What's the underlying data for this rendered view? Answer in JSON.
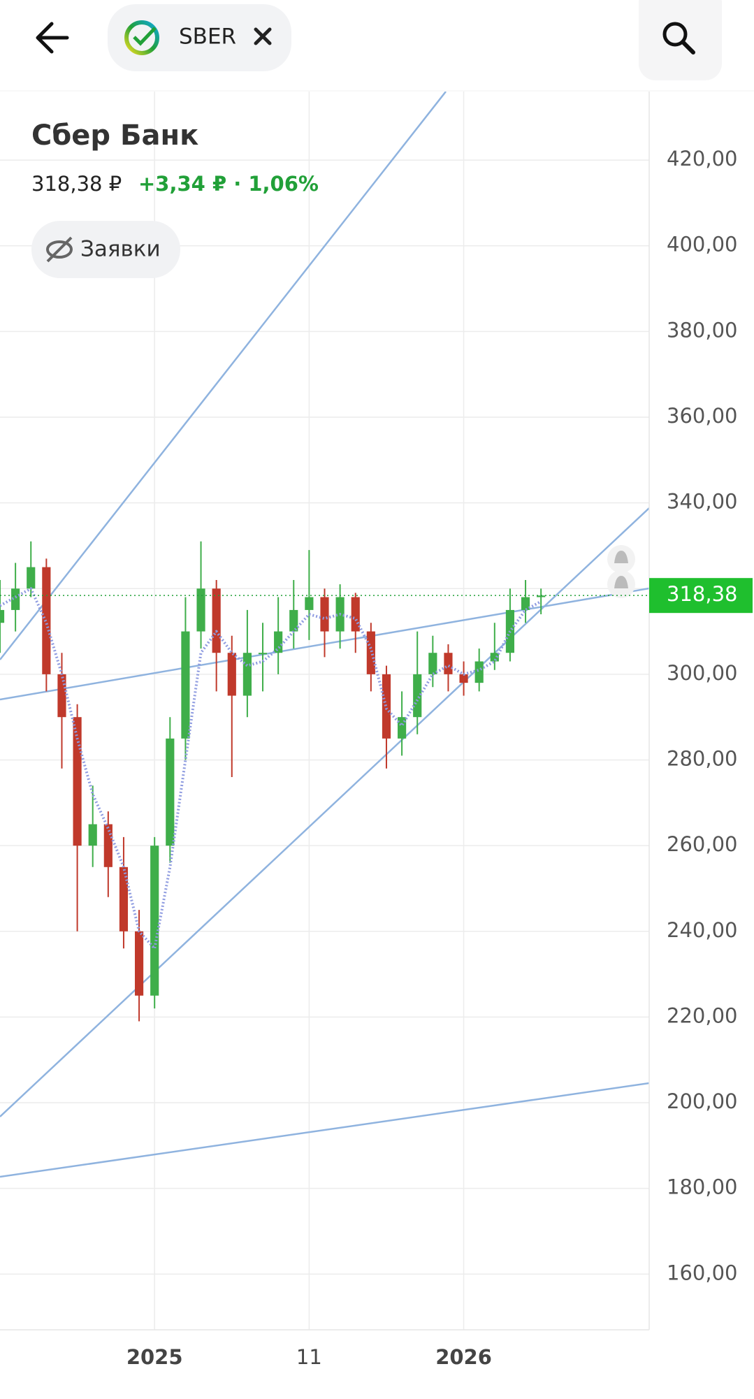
{
  "header": {
    "ticker": "SBER"
  },
  "chart_data": {
    "type": "candlestick",
    "title": "Сбер Банк",
    "price": "318,38 ₽",
    "change": "+3,34 ₽ · 1,06%",
    "orders_button": "Заявки",
    "x": [
      0,
      1,
      2,
      3,
      4,
      5,
      6,
      7,
      8,
      9,
      10,
      11,
      12,
      13,
      14,
      15,
      16,
      17,
      18,
      19,
      20,
      21,
      22,
      23,
      24,
      25,
      26,
      27,
      28,
      29,
      30,
      31,
      32,
      33,
      34,
      35
    ],
    "open": [
      312,
      315,
      320,
      325,
      300,
      290,
      260,
      265,
      255,
      240,
      225,
      260,
      285,
      310,
      320,
      305,
      295,
      305,
      305,
      310,
      315,
      318,
      310,
      318,
      310,
      300,
      285,
      290,
      300,
      305,
      300,
      298,
      303,
      305,
      315,
      318
    ],
    "high": [
      322,
      326,
      331,
      327,
      305,
      293,
      274,
      268,
      262,
      245,
      262,
      290,
      318,
      331,
      322,
      309,
      315,
      312,
      318,
      322,
      329,
      320,
      321,
      319,
      312,
      302,
      296,
      310,
      309,
      307,
      303,
      306,
      312,
      320,
      322,
      320
    ],
    "low": [
      305,
      310,
      318,
      296,
      278,
      240,
      255,
      248,
      236,
      219,
      222,
      256,
      280,
      306,
      296,
      276,
      290,
      296,
      300,
      306,
      308,
      304,
      306,
      305,
      296,
      278,
      281,
      286,
      297,
      296,
      295,
      296,
      301,
      303,
      312,
      314
    ],
    "close": [
      315,
      320,
      325,
      300,
      290,
      260,
      265,
      255,
      240,
      225,
      260,
      285,
      310,
      320,
      305,
      295,
      305,
      305,
      310,
      315,
      318,
      310,
      318,
      310,
      300,
      285,
      290,
      300,
      305,
      300,
      298,
      303,
      305,
      315,
      318,
      318.38
    ],
    "moving_average": [
      316,
      318,
      320,
      312,
      300,
      285,
      272,
      264,
      255,
      240,
      236,
      255,
      280,
      305,
      310,
      305,
      302,
      303,
      306,
      310,
      314,
      313,
      314,
      313,
      306,
      292,
      288,
      294,
      300,
      302,
      300,
      301,
      303,
      310,
      315,
      317
    ],
    "up_color": "#3fae4a",
    "down_color": "#c0392b",
    "ma_color": "#8e9be0",
    "current_price": 318.38,
    "current_price_label": "318,38",
    "xlim": [
      0,
      42
    ],
    "xticks": [
      {
        "value": 10,
        "label": "2025"
      },
      {
        "value": 20,
        "label": "11"
      },
      {
        "value": 30,
        "label": "2026"
      }
    ],
    "ylim": [
      147,
      436
    ],
    "yticks": [
      {
        "value": 160,
        "label": "160,00"
      },
      {
        "value": 180,
        "label": "180,00"
      },
      {
        "value": 200,
        "label": "200,00"
      },
      {
        "value": 220,
        "label": "220,00"
      },
      {
        "value": 240,
        "label": "240,00"
      },
      {
        "value": 260,
        "label": "260,00"
      },
      {
        "value": 280,
        "label": "280,00"
      },
      {
        "value": 300,
        "label": "300,00"
      },
      {
        "value": 320,
        "label": "320,00"
      },
      {
        "value": 340,
        "label": "340,00"
      },
      {
        "value": 360,
        "label": "360,00"
      },
      {
        "value": 380,
        "label": "380,00"
      },
      {
        "value": 400,
        "label": "400,00"
      },
      {
        "value": 420,
        "label": "420,00"
      }
    ],
    "grid": true
  }
}
